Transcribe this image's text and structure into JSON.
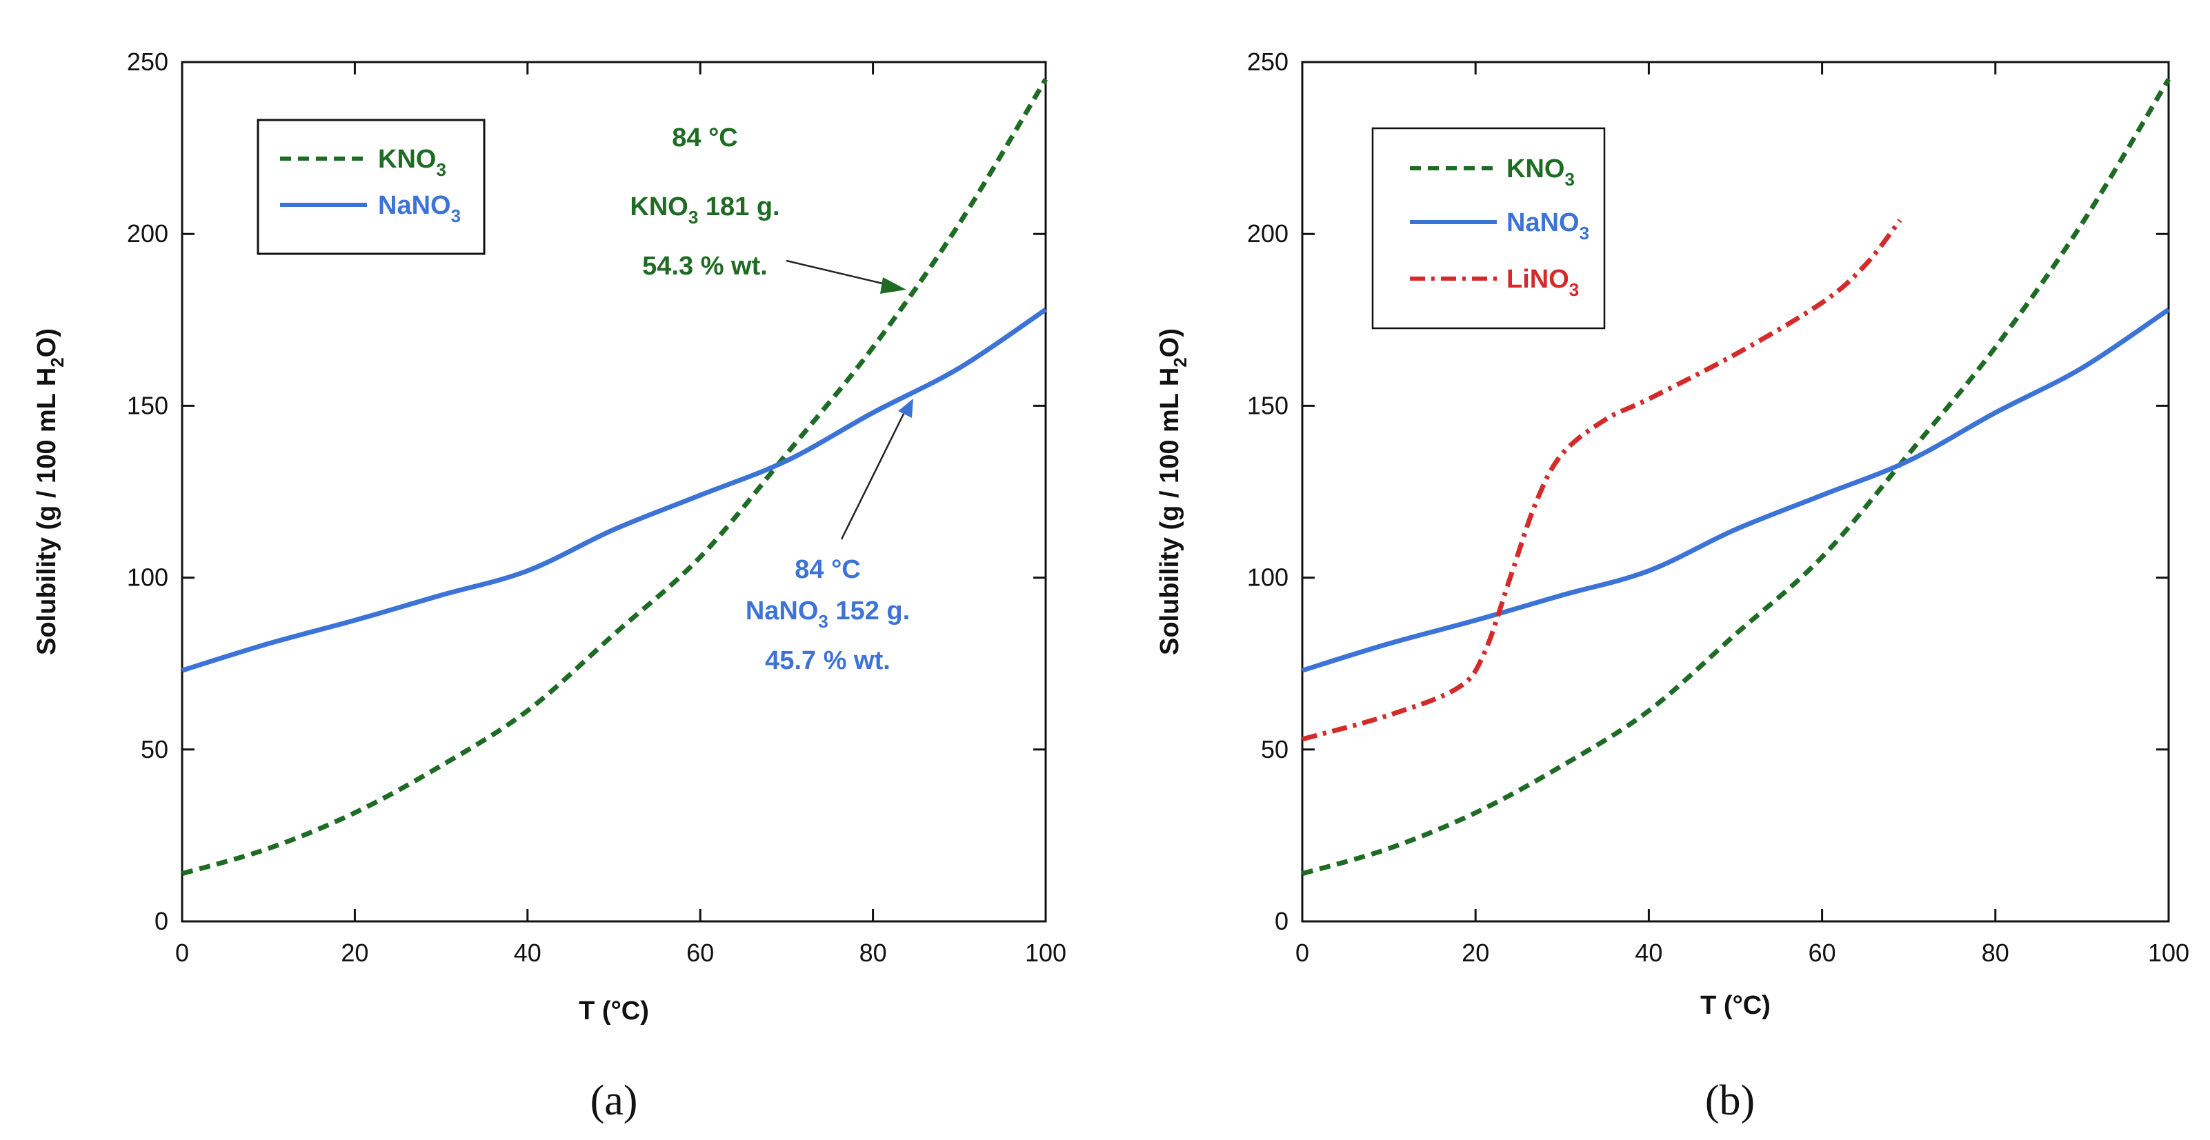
{
  "colors": {
    "kno3": "#1e6b24",
    "nano3": "#3b73d6",
    "lino3": "#d42a2a",
    "axis": "#111111"
  },
  "chart_data": [
    {
      "type": "line",
      "panel_label": "(a)",
      "xlabel": "T  (°C)",
      "ylabel": {
        "prefix": "Solubility  (g / 100 mL H",
        "sub1": "2",
        "mid": "O",
        "suffix": ")"
      },
      "xlim": [
        0,
        100
      ],
      "ylim": [
        0,
        250
      ],
      "xticks": [
        "0",
        "20",
        "40",
        "60",
        "80",
        "100"
      ],
      "yticks": [
        "0",
        "50",
        "100",
        "150",
        "200",
        "250"
      ],
      "series": [
        {
          "id": "kno3",
          "name": "KNO",
          "name_sub": "3",
          "style": "dashed",
          "x": [
            0,
            10,
            20,
            30,
            40,
            50,
            60,
            70,
            80,
            90,
            100
          ],
          "y": [
            13.9,
            21.2,
            31.6,
            45.3,
            61.3,
            83.5,
            106,
            136,
            167,
            203,
            245
          ]
        },
        {
          "id": "nano3",
          "name": "NaNO",
          "name_sub": "3",
          "style": "solid",
          "x": [
            0,
            10,
            20,
            30,
            40,
            50,
            60,
            70,
            80,
            90,
            100
          ],
          "y": [
            73,
            80.8,
            87.6,
            94.9,
            102,
            114,
            124,
            134,
            148,
            161,
            178
          ]
        }
      ],
      "annotations": [
        {
          "id": "kno3-84",
          "color": "kno3",
          "line1": "84 °C",
          "line2_main": "KNO",
          "line2_sub": "3",
          "line2_rest": " 181 g.",
          "line3": "54.3 % wt.",
          "x": 84,
          "y": 181
        },
        {
          "id": "nano3-84",
          "color": "nano3",
          "line1": "84 °C",
          "line2_main": "NaNO",
          "line2_sub": "3",
          "line2_rest": " 152 g.",
          "line3": "45.7 % wt.",
          "x": 84,
          "y": 152
        }
      ]
    },
    {
      "type": "line",
      "panel_label": "(b)",
      "xlabel": "T (°C)",
      "ylabel": {
        "prefix": "Solubility (g / 100 mL H",
        "sub1": "2",
        "mid": "O",
        "suffix": ")"
      },
      "xlim": [
        0,
        100
      ],
      "ylim": [
        0,
        250
      ],
      "xticks": [
        "0",
        "20",
        "40",
        "60",
        "80",
        "100"
      ],
      "yticks": [
        "0",
        "50",
        "100",
        "150",
        "200",
        "250"
      ],
      "series": [
        {
          "id": "kno3",
          "name": "KNO",
          "name_sub": "3",
          "style": "dashed",
          "x": [
            0,
            10,
            20,
            30,
            40,
            50,
            60,
            70,
            80,
            90,
            100
          ],
          "y": [
            13.9,
            21.2,
            31.6,
            45.3,
            61.3,
            83.5,
            106,
            136,
            167,
            203,
            245
          ]
        },
        {
          "id": "nano3",
          "name": "NaNO",
          "name_sub": "3",
          "style": "solid",
          "x": [
            0,
            10,
            20,
            30,
            40,
            50,
            60,
            70,
            80,
            90,
            100
          ],
          "y": [
            73,
            80.8,
            87.6,
            94.9,
            102,
            114,
            124,
            134,
            148,
            161,
            178
          ]
        },
        {
          "id": "lino3",
          "name": "LiNO",
          "name_sub": "3",
          "style": "dashdot",
          "x": [
            0,
            10,
            18,
            21,
            24,
            27,
            30,
            35,
            40,
            50,
            60,
            65,
            69
          ],
          "y": [
            53,
            60,
            68,
            78,
            100,
            122,
            136,
            146,
            152,
            165,
            180,
            191,
            204
          ]
        }
      ]
    }
  ]
}
